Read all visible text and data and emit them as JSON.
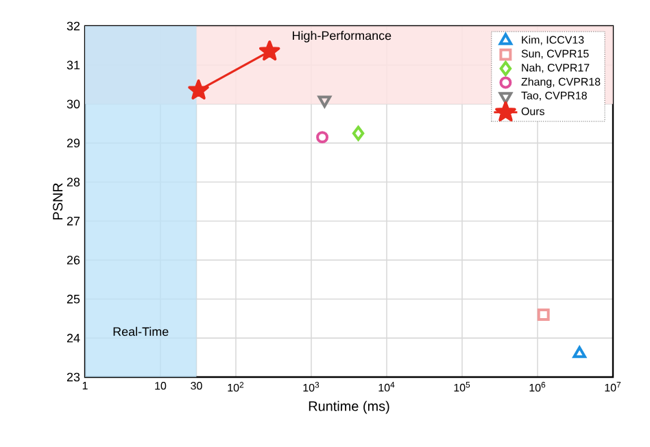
{
  "chart_data": {
    "type": "scatter",
    "xlabel": "Runtime (ms)",
    "ylabel": "PSNR",
    "log": "x",
    "grid": true,
    "legend": "top right",
    "xlim": [
      1,
      10000000
    ],
    "ylim": [
      23,
      32
    ],
    "xticks": [
      1,
      10,
      30,
      {
        "value": 100,
        "label": "10$^{2}$"
      },
      {
        "value": 1000,
        "label": "10$^{3}$"
      },
      {
        "value": 10000,
        "label": "10$^{4}$"
      },
      {
        "value": 100000,
        "label": "10$^{5}$"
      },
      {
        "value": 1000000,
        "label": "10$^{6}$"
      },
      {
        "value": 10000000,
        "label": "10$^{7}$"
      }
    ],
    "yticks": [
      23,
      24,
      25,
      26,
      27,
      28,
      29,
      30,
      31,
      32
    ],
    "bands": [
      {
        "axis": "y",
        "from": 30,
        "to": 32,
        "label": "High-Performance",
        "color": "#fde3e3"
      },
      {
        "axis": "x",
        "from": 1,
        "to": 30,
        "label": "Real-Time",
        "color": "#b9e2f8"
      }
    ],
    "series": [
      {
        "name": "Kim, ICCV13",
        "color": "#1a8fe0",
        "marker": "triangle",
        "x": [
          3600000
        ],
        "values": [
          23.6
        ]
      },
      {
        "name": "Sun, CVPR15",
        "color": "#f09a9a",
        "marker": "square",
        "x": [
          1200000
        ],
        "values": [
          24.6
        ]
      },
      {
        "name": "Nah, CVPR17",
        "color": "#7ddc3c",
        "marker": "diamond",
        "x": [
          4200
        ],
        "values": [
          29.25
        ]
      },
      {
        "name": "Zhang, CVPR18",
        "color": "#e0509a",
        "marker": "circle",
        "x": [
          1400
        ],
        "values": [
          29.15
        ]
      },
      {
        "name": "Tao, CVPR18",
        "color": "#808080",
        "marker": "triangle-down",
        "x": [
          1500
        ],
        "values": [
          30.1
        ]
      },
      {
        "name": "Ours",
        "type": "line",
        "color": "#e8291c",
        "marker": "star",
        "x": [
          32,
          280
        ],
        "values": [
          30.35,
          31.35
        ]
      }
    ]
  }
}
